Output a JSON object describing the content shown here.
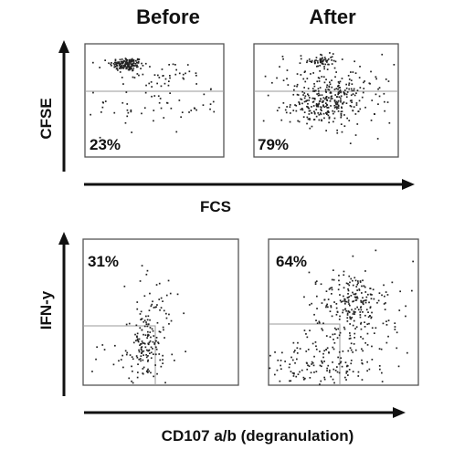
{
  "figure": {
    "top_row": {
      "column_titles": [
        "Before",
        "After"
      ],
      "ylabel": "CFSE",
      "xlabel": "FCS"
    },
    "bottom_row": {
      "ylabel": "IFN-y",
      "xlabel": "CD107 a/b (degranulation)"
    }
  },
  "chart_data": [
    {
      "type": "scatter",
      "panel": "top-left",
      "title": "Before",
      "xlabel": "FCS",
      "ylabel": "CFSE",
      "annotation": "23%",
      "gate": "horizontal line",
      "xlim": [
        0,
        100
      ],
      "ylim": [
        0,
        100
      ],
      "clusters": [
        {
          "cx": 30,
          "cy": 82,
          "sx": 6,
          "sy": 3,
          "n": 150
        },
        {
          "cx": 55,
          "cy": 73,
          "sx": 18,
          "sy": 6,
          "n": 40
        },
        {
          "cx": 50,
          "cy": 45,
          "sx": 25,
          "sy": 12,
          "n": 60
        }
      ]
    },
    {
      "type": "scatter",
      "panel": "top-right",
      "title": "After",
      "xlabel": "FCS",
      "ylabel": "CFSE",
      "annotation": "79%",
      "gate": "horizontal line",
      "xlim": [
        0,
        100
      ],
      "ylim": [
        0,
        100
      ],
      "clusters": [
        {
          "cx": 47,
          "cy": 85,
          "sx": 4,
          "sy": 3,
          "n": 50
        },
        {
          "cx": 50,
          "cy": 75,
          "sx": 20,
          "sy": 8,
          "n": 60
        },
        {
          "cx": 50,
          "cy": 48,
          "sx": 12,
          "sy": 9,
          "n": 250
        },
        {
          "cx": 62,
          "cy": 45,
          "sx": 22,
          "sy": 15,
          "n": 80
        }
      ]
    },
    {
      "type": "scatter",
      "panel": "bottom-left",
      "xlabel": "CD107 a/b (degranulation)",
      "ylabel": "IFN-y",
      "annotation": "31%",
      "gate": "lower-left box",
      "xlim": [
        0,
        100
      ],
      "ylim": [
        0,
        100
      ],
      "clusters": [
        {
          "cx": 40,
          "cy": 28,
          "sx": 5,
          "sy": 12,
          "n": 110
        },
        {
          "cx": 47,
          "cy": 50,
          "sx": 8,
          "sy": 18,
          "n": 45
        },
        {
          "cx": 35,
          "cy": 18,
          "sx": 14,
          "sy": 8,
          "n": 40
        }
      ]
    },
    {
      "type": "scatter",
      "panel": "bottom-right",
      "xlabel": "CD107 a/b (degranulation)",
      "ylabel": "IFN-y",
      "annotation": "64%",
      "gate": "lower-left box",
      "xlim": [
        0,
        100
      ],
      "ylim": [
        0,
        100
      ],
      "clusters": [
        {
          "cx": 55,
          "cy": 58,
          "sx": 10,
          "sy": 10,
          "n": 170
        },
        {
          "cx": 45,
          "cy": 22,
          "sx": 18,
          "sy": 10,
          "n": 120
        },
        {
          "cx": 68,
          "cy": 45,
          "sx": 20,
          "sy": 20,
          "n": 80
        },
        {
          "cx": 22,
          "cy": 10,
          "sx": 16,
          "sy": 6,
          "n": 50
        }
      ]
    }
  ]
}
